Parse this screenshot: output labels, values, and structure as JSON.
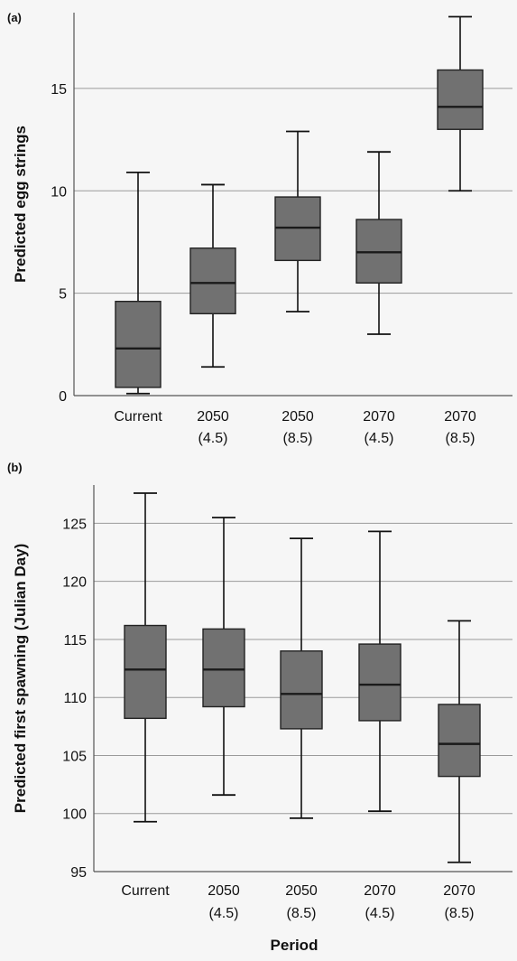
{
  "figure": {
    "xlabel": "Period"
  },
  "chart_data": [
    {
      "panel_label": "(a)",
      "type": "box",
      "title": "",
      "xlabel": "",
      "ylabel": "Predicted egg strings",
      "ylim": [
        0,
        18.7
      ],
      "yticks": [
        0,
        5,
        10,
        15
      ],
      "grid": true,
      "categories": [
        {
          "label": "Current",
          "sublabel": ""
        },
        {
          "label": "2050",
          "sublabel": "(4.5)"
        },
        {
          "label": "2050",
          "sublabel": "(8.5)"
        },
        {
          "label": "2070",
          "sublabel": "(4.5)"
        },
        {
          "label": "2070",
          "sublabel": "(8.5)"
        }
      ],
      "boxes": [
        {
          "min": 0.1,
          "q1": 0.4,
          "median": 2.3,
          "q3": 4.6,
          "max": 10.9
        },
        {
          "min": 1.4,
          "q1": 4.0,
          "median": 5.5,
          "q3": 7.2,
          "max": 10.3
        },
        {
          "min": 4.1,
          "q1": 6.6,
          "median": 8.2,
          "q3": 9.7,
          "max": 12.9
        },
        {
          "min": 3.0,
          "q1": 5.5,
          "median": 7.0,
          "q3": 8.6,
          "max": 11.9
        },
        {
          "min": 10.0,
          "q1": 13.0,
          "median": 14.1,
          "q3": 15.9,
          "max": 18.5
        }
      ],
      "colors": {
        "box": "#717171",
        "median": "#1a1a1a",
        "grid": "#9a9a9a"
      }
    },
    {
      "panel_label": "(b)",
      "type": "box",
      "title": "",
      "xlabel": "Period",
      "ylabel": "Predicted first spawning (Julian Day)",
      "ylim": [
        95,
        128.3
      ],
      "yticks": [
        95,
        100,
        105,
        110,
        115,
        120,
        125
      ],
      "grid": true,
      "categories": [
        {
          "label": "Current",
          "sublabel": ""
        },
        {
          "label": "2050",
          "sublabel": "(4.5)"
        },
        {
          "label": "2050",
          "sublabel": "(8.5)"
        },
        {
          "label": "2070",
          "sublabel": "(4.5)"
        },
        {
          "label": "2070",
          "sublabel": "(8.5)"
        }
      ],
      "boxes": [
        {
          "min": 99.3,
          "q1": 108.2,
          "median": 112.4,
          "q3": 116.2,
          "max": 127.6
        },
        {
          "min": 101.6,
          "q1": 109.2,
          "median": 112.4,
          "q3": 115.9,
          "max": 125.5
        },
        {
          "min": 99.6,
          "q1": 107.3,
          "median": 110.3,
          "q3": 114.0,
          "max": 123.7
        },
        {
          "min": 100.2,
          "q1": 108.0,
          "median": 111.1,
          "q3": 114.6,
          "max": 124.3
        },
        {
          "min": 95.8,
          "q1": 103.2,
          "median": 106.0,
          "q3": 109.4,
          "max": 116.6
        }
      ],
      "colors": {
        "box": "#717171",
        "median": "#1a1a1a",
        "grid": "#9a9a9a"
      }
    }
  ]
}
